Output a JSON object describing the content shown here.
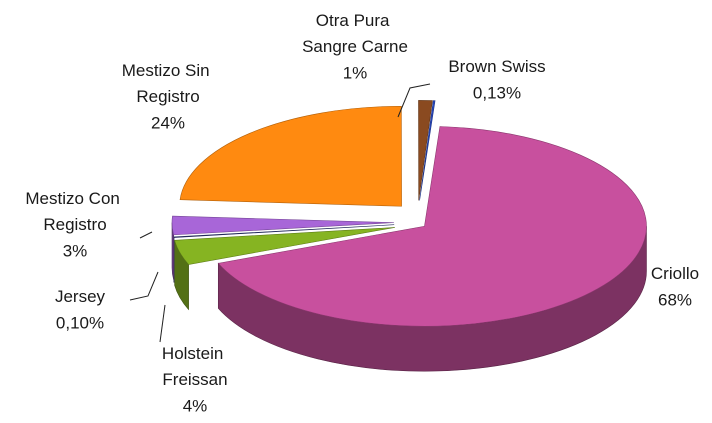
{
  "chart_data": {
    "type": "pie3d",
    "categories": [
      "Criollo",
      "Holstein Freissan",
      "Jersey",
      "Mestizo Con Registro",
      "Mestizo Sin Registro",
      "Otra Pura Sangre Carne",
      "Brown Swiss"
    ],
    "values": [
      68,
      4,
      0.1,
      3,
      24,
      1,
      0.13
    ],
    "value_labels": [
      "68%",
      "4%",
      "0,10%",
      "3%",
      "24%",
      "1%",
      "0,13%"
    ],
    "colors": [
      "#c8509e",
      "#86b422",
      "#303a80",
      "#a866d8",
      "#ff8a10",
      "#8a4a20",
      "#2848c0"
    ]
  }
}
